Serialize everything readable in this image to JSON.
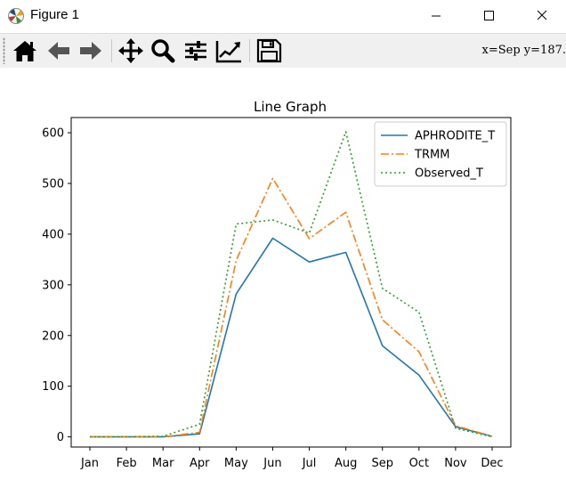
{
  "window": {
    "title": "Figure 1",
    "app_icon": "matplotlib-icon",
    "controls": [
      "minimize-icon",
      "maximize-icon",
      "close-icon"
    ]
  },
  "toolbar": {
    "tools": [
      "home-icon",
      "back-arrow-icon",
      "forward-arrow-icon",
      "pan-icon",
      "zoom-icon",
      "subplots-config-icon",
      "edit-axes-icon",
      "save-icon"
    ],
    "coords": "x=Sep y=187."
  },
  "chart_data": {
    "type": "line",
    "title": "Line Graph",
    "xlabel": "",
    "ylabel": "",
    "categories": [
      "Jan",
      "Feb",
      "Mar",
      "Apr",
      "May",
      "Jun",
      "Jul",
      "Aug",
      "Sep",
      "Oct",
      "Nov",
      "Dec"
    ],
    "ylim": [
      -20,
      630
    ],
    "yticks": [
      0,
      100,
      200,
      300,
      400,
      500,
      600
    ],
    "grid": false,
    "legend": "top-right",
    "series": [
      {
        "name": "APHRODITE_T",
        "color": "#1f77b4",
        "style": "solid",
        "values": [
          0,
          0,
          0,
          6,
          282,
          392,
          345,
          364,
          180,
          122,
          20,
          1
        ]
      },
      {
        "name": "TRMM",
        "color": "#ff7f0e",
        "style": "dashdot",
        "values": [
          0,
          0,
          0,
          9,
          348,
          510,
          391,
          443,
          231,
          168,
          22,
          1
        ]
      },
      {
        "name": "Observed_T",
        "color": "#2ca02c",
        "style": "dotted",
        "values": [
          0,
          0,
          1,
          25,
          420,
          428,
          402,
          602,
          293,
          246,
          17,
          0
        ]
      }
    ]
  }
}
